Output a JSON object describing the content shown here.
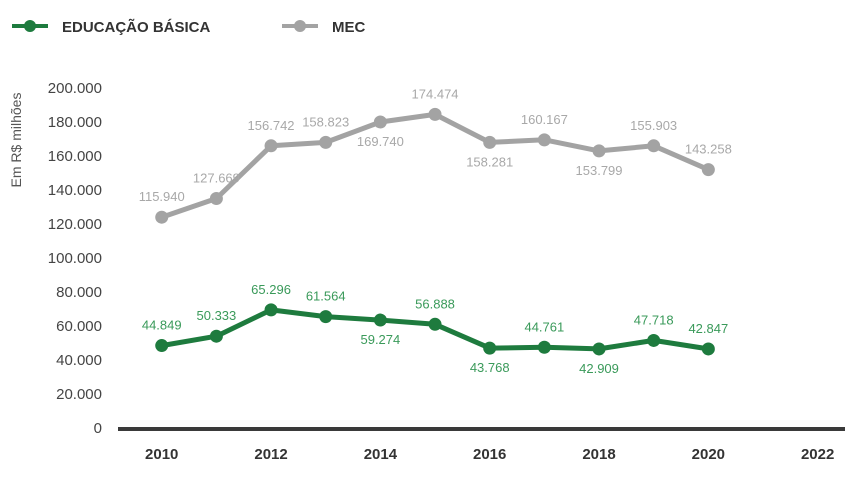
{
  "chart_data": {
    "type": "line",
    "ylabel": "Em R$ milhões",
    "ylim": [
      0,
      200000
    ],
    "y_ticks": [
      0,
      20000,
      40000,
      60000,
      80000,
      100000,
      120000,
      140000,
      160000,
      180000,
      200000
    ],
    "y_tick_labels": [
      "0",
      "20.000",
      "40.000",
      "60.000",
      "80.000",
      "100.000",
      "120.000",
      "140.000",
      "160.000",
      "180.000",
      "200.000"
    ],
    "x_ticks": [
      2010,
      2012,
      2014,
      2016,
      2018,
      2020,
      2022
    ],
    "x_tick_labels": [
      "2010",
      "2012",
      "2014",
      "2016",
      "2018",
      "2020",
      "2022"
    ],
    "xlim": [
      2009.2,
      2022.5
    ],
    "legend_position": "top-left",
    "x": [
      2010,
      2011,
      2012,
      2013,
      2014,
      2015,
      2016,
      2017,
      2018,
      2019,
      2020
    ],
    "series": [
      {
        "name": "EDUCAÇÃO BÁSICA",
        "color": "#1e7b3e",
        "label_color": "#3a9a5a",
        "values": [
          48500,
          54000,
          69500,
          65500,
          63500,
          61000,
          47000,
          47500,
          46500,
          51500,
          46500
        ],
        "labels": [
          "44.849",
          "50.333",
          "65.296",
          "61.564",
          "59.274",
          "56.888",
          "43.768",
          "44.761",
          "42.909",
          "47.718",
          "42.847"
        ],
        "label_positions": [
          "above",
          "above",
          "above",
          "above",
          "below",
          "above",
          "below",
          "above",
          "below",
          "above",
          "above"
        ]
      },
      {
        "name": "MEC",
        "color": "#a3a3a3",
        "label_color": "#a8a8a8",
        "values": [
          124000,
          135000,
          166000,
          168000,
          180000,
          184500,
          168000,
          169500,
          163000,
          166000,
          152000
        ],
        "labels": [
          "115.940",
          "127.669",
          "156.742",
          "158.823",
          "169.740",
          "174.474",
          "158.281",
          "160.167",
          "153.799",
          "155.903",
          "143.258"
        ],
        "label_positions": [
          "above",
          "above",
          "above",
          "above",
          "below",
          "above",
          "below",
          "above",
          "below",
          "above",
          "above"
        ]
      }
    ]
  }
}
